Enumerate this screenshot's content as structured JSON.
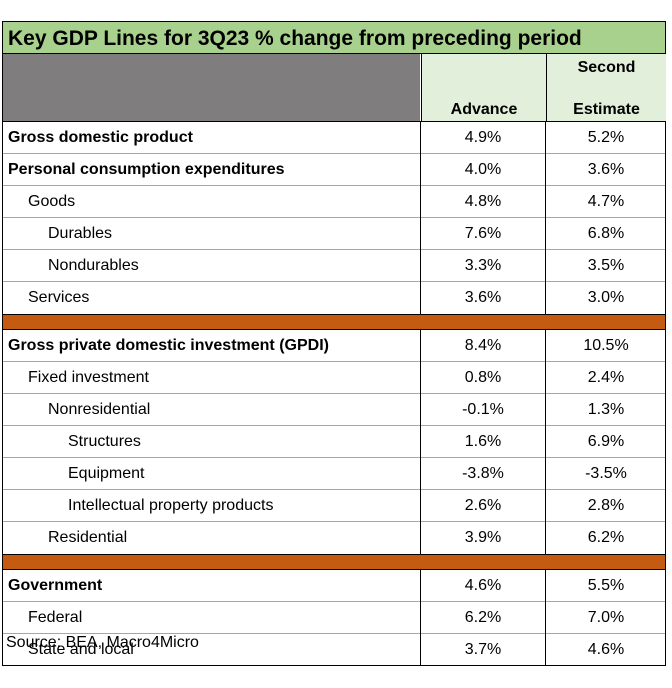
{
  "title": "Key GDP Lines for 3Q23 % change from preceding period",
  "columns": {
    "advance": "Advance",
    "second_line1": "Second",
    "second_line2": "Estimate"
  },
  "chart_data": {
    "type": "table",
    "title": "Key GDP Lines for 3Q23 % change from preceding period",
    "columns": [
      "Advance",
      "Second Estimate"
    ],
    "groups": [
      {
        "rows": [
          {
            "label": "Gross domestic product",
            "advance": "4.9%",
            "second": "5.2%"
          },
          {
            "label": "Personal consumption expenditures",
            "advance": "4.0%",
            "second": "3.6%"
          },
          {
            "label": "Goods",
            "advance": "4.8%",
            "second": "4.7%"
          },
          {
            "label": "Durables",
            "advance": "7.6%",
            "second": "6.8%"
          },
          {
            "label": "Nondurables",
            "advance": "3.3%",
            "second": "3.5%"
          },
          {
            "label": "Services",
            "advance": "3.6%",
            "second": "3.0%"
          }
        ]
      },
      {
        "rows": [
          {
            "label": "Gross private domestic investment (GPDI)",
            "advance": "8.4%",
            "second": "10.5%"
          },
          {
            "label": "Fixed investment",
            "advance": "0.8%",
            "second": "2.4%"
          },
          {
            "label": "Nonresidential",
            "advance": "-0.1%",
            "second": "1.3%"
          },
          {
            "label": "Structures",
            "advance": "1.6%",
            "second": "6.9%"
          },
          {
            "label": "Equipment",
            "advance": "-3.8%",
            "second": "-3.5%"
          },
          {
            "label": "Intellectual property products",
            "advance": "2.6%",
            "second": "2.8%"
          },
          {
            "label": "Residential",
            "advance": "3.9%",
            "second": "6.2%"
          }
        ]
      },
      {
        "rows": [
          {
            "label": "Government",
            "advance": "4.6%",
            "second": "5.5%"
          },
          {
            "label": "Federal",
            "advance": "6.2%",
            "second": "7.0%"
          },
          {
            "label": "State and local",
            "advance": "3.7%",
            "second": "4.6%"
          }
        ]
      }
    ]
  },
  "source": "Source: BEA, Macro4Micro",
  "colors": {
    "title_bg": "#a9d18e",
    "header_bg": "#e2efda",
    "header_gray": "#7f7d7d",
    "separator": "#c55a11"
  }
}
